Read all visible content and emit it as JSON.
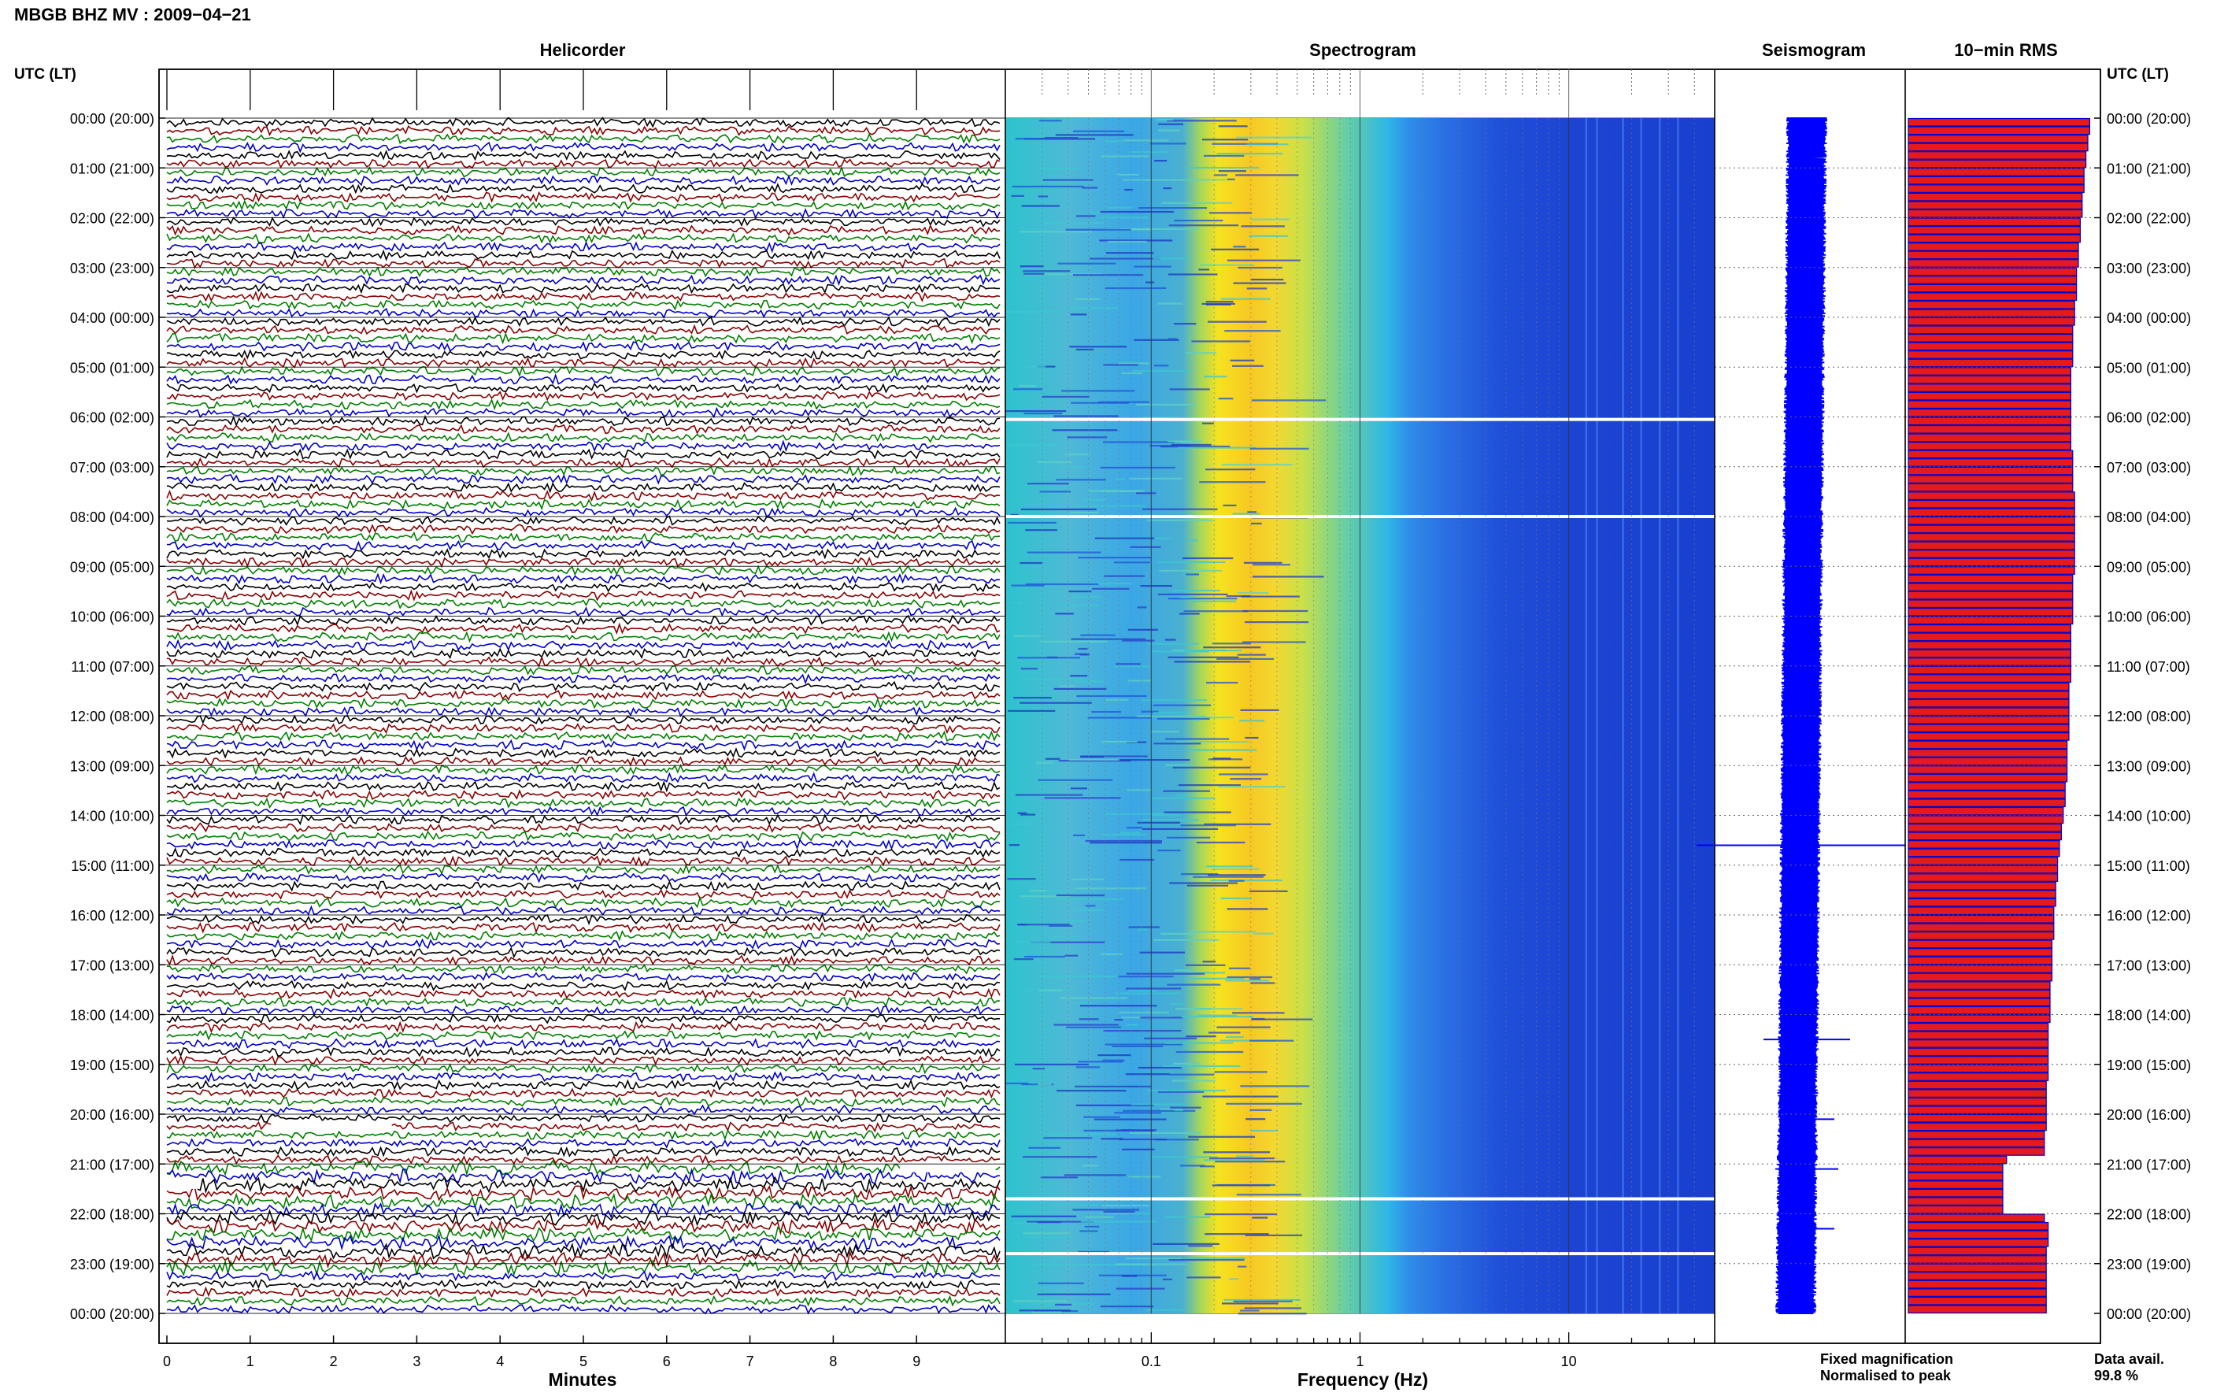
{
  "figure": {
    "title": "MBGB BHZ MV : 2009−04−21",
    "panel_titles": [
      "Helicorder",
      "Spectrogram",
      "Seismogram",
      "10−min RMS"
    ],
    "utc_axis_label": "UTC (LT)",
    "data_avail_label": "Data avail.",
    "data_avail_value": "99.8 %",
    "legend": {
      "fixed": "Fixed magnification",
      "normalised": "Normalised to peak"
    },
    "colors": {
      "trace_cycle": [
        "#000000",
        "#8b0000",
        "#008000",
        "#0000cc"
      ],
      "fixed": "#0000ff",
      "normalised": "#ff0000",
      "rms_bar_fill": "#e41a1c",
      "rms_bar_edge": "#0000cc"
    }
  },
  "chart_data": [
    {
      "type": "line",
      "title": "Helicorder",
      "xlabel": "Minutes",
      "xlim": [
        0,
        10
      ],
      "xticks": [
        "0",
        "1",
        "2",
        "3",
        "4",
        "5",
        "6",
        "7",
        "8",
        "9"
      ],
      "ylabels": [
        "00:00 (20:00)",
        "01:00 (21:00)",
        "02:00 (22:00)",
        "03:00 (23:00)",
        "04:00 (00:00)",
        "05:00 (01:00)",
        "06:00 (02:00)",
        "07:00 (03:00)",
        "08:00 (04:00)",
        "09:00 (05:00)",
        "10:00 (06:00)",
        "11:00 (07:00)",
        "12:00 (08:00)",
        "13:00 (09:00)",
        "14:00 (10:00)",
        "15:00 (11:00)",
        "16:00 (12:00)",
        "17:00 (13:00)",
        "18:00 (14:00)",
        "19:00 (15:00)",
        "20:00 (16:00)",
        "21:00 (17:00)",
        "22:00 (18:00)",
        "23:00 (19:00)",
        "00:00 (20:00)"
      ],
      "rows": 144,
      "rows_per_hour": 6
    },
    {
      "type": "heatmap",
      "title": "Spectrogram",
      "xlabel": "Frequency (Hz)",
      "xscale": "log",
      "xlim": [
        0.02,
        50
      ],
      "xticks": [
        "0.1",
        "1",
        "10"
      ],
      "hours": 24
    },
    {
      "type": "line",
      "title": "Seismogram",
      "hours": 24
    },
    {
      "type": "bar",
      "title": "10−min RMS",
      "orientation": "horizontal",
      "count": 144,
      "gap_intervals": [
        125,
        126,
        127,
        128,
        129,
        130
      ],
      "values": [
        0.96,
        0.96,
        0.95,
        0.95,
        0.94,
        0.94,
        0.93,
        0.93,
        0.93,
        0.92,
        0.92,
        0.92,
        0.91,
        0.91,
        0.91,
        0.9,
        0.9,
        0.9,
        0.89,
        0.89,
        0.89,
        0.89,
        0.88,
        0.88,
        0.88,
        0.87,
        0.87,
        0.87,
        0.87,
        0.87,
        0.86,
        0.86,
        0.86,
        0.86,
        0.86,
        0.86,
        0.86,
        0.86,
        0.86,
        0.86,
        0.87,
        0.87,
        0.87,
        0.87,
        0.87,
        0.88,
        0.88,
        0.88,
        0.88,
        0.88,
        0.88,
        0.88,
        0.88,
        0.88,
        0.88,
        0.87,
        0.87,
        0.87,
        0.87,
        0.87,
        0.87,
        0.86,
        0.86,
        0.86,
        0.86,
        0.86,
        0.86,
        0.86,
        0.85,
        0.85,
        0.85,
        0.85,
        0.85,
        0.85,
        0.85,
        0.84,
        0.84,
        0.84,
        0.84,
        0.84,
        0.83,
        0.83,
        0.83,
        0.82,
        0.82,
        0.81,
        0.81,
        0.8,
        0.8,
        0.79,
        0.79,
        0.79,
        0.78,
        0.78,
        0.78,
        0.77,
        0.77,
        0.77,
        0.77,
        0.76,
        0.76,
        0.76,
        0.76,
        0.76,
        0.75,
        0.75,
        0.75,
        0.75,
        0.75,
        0.74,
        0.74,
        0.74,
        0.74,
        0.74,
        0.74,
        0.74,
        0.73,
        0.73,
        0.73,
        0.73,
        0.73,
        0.73,
        0.72,
        0.72,
        0.72,
        0.52,
        0.5,
        0.5,
        0.5,
        0.5,
        0.5,
        0.5,
        0.72,
        0.74,
        0.74,
        0.74,
        0.73,
        0.73,
        0.73,
        0.73,
        0.73,
        0.73,
        0.73,
        0.73
      ]
    }
  ]
}
